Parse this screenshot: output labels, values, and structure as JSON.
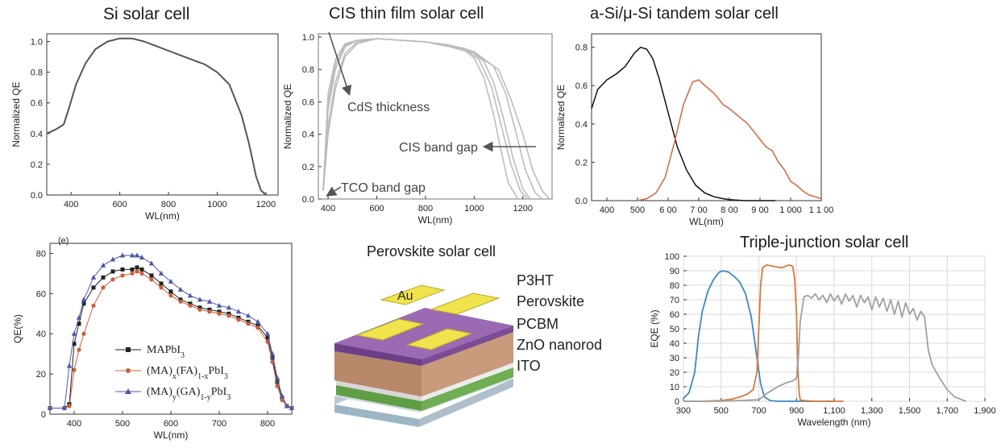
{
  "colors": {
    "si": "#555555",
    "cis": "#bcbcbc",
    "tandem_top": "#111111",
    "tandem_bottom": "#d2653f",
    "ma": "#222222",
    "mafa": "#c8603b",
    "maga": "#4a5aa6",
    "tj_top": "#3f86c4",
    "tj_mid": "#d77a3c",
    "tj_bottom": "#a0a0a0"
  },
  "panels": {
    "si": {
      "title": "Si solar cell"
    },
    "cis": {
      "title": "CIS thin film solar cell",
      "annotations": {
        "cds": "CdS thickness",
        "cis_gap": "CIS band gap",
        "tco": "TCO band gap"
      }
    },
    "tandem": {
      "title": "a-Si/μ-Si tandem solar cell"
    },
    "qe": {
      "panel_label": "(e)"
    },
    "perovskite": {
      "title": "Perovskite solar cell",
      "layers": [
        "P3HT",
        "Perovskite",
        "PCBM",
        "ZnO nanorod",
        "ITO"
      ],
      "electrode": "Au"
    },
    "triple": {
      "title": "Triple-junction solar cell"
    }
  },
  "chart_data": [
    {
      "id": "si",
      "type": "line",
      "title": "Si solar cell",
      "xlabel": "WL(nm)",
      "ylabel": "Normalized QE",
      "xlim": [
        300,
        1250
      ],
      "ylim": [
        0,
        1.05
      ],
      "xticks": [
        400,
        600,
        800,
        1000,
        1200
      ],
      "yticks": [
        0.0,
        0.2,
        0.4,
        0.6,
        0.8,
        1.0
      ],
      "ytick_labels": [
        "0.0",
        "0.2",
        "0.4",
        "0.6",
        "0.8",
        "1.0"
      ],
      "series": [
        {
          "x": [
            300,
            340,
            370,
            390,
            420,
            460,
            500,
            550,
            600,
            650,
            700,
            750,
            800,
            850,
            900,
            950,
            1000,
            1050,
            1100,
            1130,
            1160,
            1180,
            1200
          ],
          "y": [
            0.4,
            0.43,
            0.46,
            0.56,
            0.72,
            0.86,
            0.95,
            1.0,
            1.02,
            1.02,
            1.0,
            0.97,
            0.94,
            0.91,
            0.88,
            0.85,
            0.8,
            0.72,
            0.52,
            0.34,
            0.12,
            0.03,
            0.0
          ]
        }
      ]
    },
    {
      "id": "cis",
      "type": "line",
      "title": "CIS thin film solar cell",
      "xlabel": "WL(nm)",
      "ylabel": "Normalized QE",
      "xlim": [
        360,
        1320
      ],
      "ylim": [
        0,
        1.02
      ],
      "xticks": [
        400,
        600,
        800,
        1000,
        1200
      ],
      "yticks": [
        0.0,
        0.2,
        0.4,
        0.6,
        0.8,
        1.0
      ],
      "ytick_labels": [
        "0.0",
        "0.2",
        "0.4",
        "0.6",
        "0.8",
        "1.0"
      ],
      "series": [
        {
          "x": [
            380,
            400,
            430,
            470,
            520,
            600,
            700,
            800,
            900,
            960,
            1000,
            1040,
            1080,
            1110,
            1140,
            1180
          ],
          "y": [
            0.05,
            0.55,
            0.8,
            0.94,
            0.98,
            0.99,
            0.98,
            0.97,
            0.95,
            0.92,
            0.87,
            0.75,
            0.52,
            0.3,
            0.1,
            0.0
          ]
        },
        {
          "x": [
            380,
            400,
            430,
            470,
            520,
            600,
            700,
            800,
            900,
            980,
            1040,
            1080,
            1120,
            1160,
            1200,
            1230
          ],
          "y": [
            0.05,
            0.6,
            0.83,
            0.95,
            0.98,
            0.99,
            0.98,
            0.97,
            0.95,
            0.92,
            0.85,
            0.72,
            0.5,
            0.25,
            0.06,
            0.0
          ]
        },
        {
          "x": [
            380,
            400,
            430,
            470,
            520,
            600,
            700,
            800,
            900,
            1000,
            1080,
            1130,
            1170,
            1210,
            1250,
            1280
          ],
          "y": [
            0.05,
            0.45,
            0.72,
            0.9,
            0.97,
            0.99,
            0.98,
            0.97,
            0.95,
            0.91,
            0.82,
            0.65,
            0.42,
            0.18,
            0.04,
            0.0
          ]
        },
        {
          "x": [
            380,
            400,
            430,
            470,
            520,
            600,
            700,
            800,
            900,
            1000,
            1100,
            1150,
            1200,
            1240,
            1280,
            1310
          ],
          "y": [
            0.05,
            0.4,
            0.68,
            0.88,
            0.96,
            0.99,
            0.98,
            0.97,
            0.94,
            0.9,
            0.8,
            0.62,
            0.4,
            0.18,
            0.05,
            0.0
          ]
        },
        {
          "x": [
            380,
            400,
            430,
            470,
            520,
            600,
            700,
            800,
            900,
            960,
            1020,
            1070,
            1110,
            1150,
            1190,
            1220
          ],
          "y": [
            0.05,
            0.65,
            0.86,
            0.96,
            0.98,
            0.99,
            0.98,
            0.97,
            0.95,
            0.93,
            0.86,
            0.7,
            0.46,
            0.22,
            0.05,
            0.0
          ]
        }
      ]
    },
    {
      "id": "tandem",
      "type": "line",
      "title": "a-Si/μ-Si tandem solar cell",
      "xlabel": "WL(nm)",
      "ylabel": "Normalized QE",
      "xlim": [
        350,
        1100
      ],
      "ylim": [
        0,
        0.87
      ],
      "xticks": [
        400,
        500,
        600,
        700,
        800,
        900,
        1000,
        1100
      ],
      "xtick_labels": [
        "400",
        "500",
        "6 00",
        "7 00",
        "8 00",
        "9 00",
        "1 000",
        "1 1 00"
      ],
      "yticks": [
        0.0,
        0.2,
        0.4,
        0.6,
        0.8
      ],
      "ytick_labels": [
        "0.0",
        "0.2",
        "0.4",
        "0.6",
        "0.8"
      ],
      "series": [
        {
          "x": [
            350,
            370,
            400,
            430,
            460,
            490,
            510,
            530,
            550,
            570,
            600,
            630,
            660,
            690,
            720,
            750,
            780,
            800,
            850,
            900,
            950
          ],
          "y": [
            0.48,
            0.58,
            0.63,
            0.66,
            0.7,
            0.77,
            0.8,
            0.79,
            0.74,
            0.64,
            0.46,
            0.28,
            0.16,
            0.08,
            0.04,
            0.02,
            0.01,
            0.005,
            0.0,
            0.0,
            0.0
          ]
        },
        {
          "x": [
            500,
            530,
            560,
            590,
            620,
            650,
            680,
            700,
            720,
            750,
            780,
            800,
            830,
            860,
            880,
            900,
            920,
            940,
            960,
            980,
            1000,
            1020,
            1040,
            1060,
            1080,
            1100
          ],
          "y": [
            0.0,
            0.01,
            0.04,
            0.12,
            0.3,
            0.5,
            0.62,
            0.63,
            0.6,
            0.56,
            0.5,
            0.48,
            0.44,
            0.4,
            0.36,
            0.32,
            0.28,
            0.26,
            0.2,
            0.16,
            0.1,
            0.08,
            0.05,
            0.03,
            0.02,
            0.01
          ]
        }
      ]
    },
    {
      "id": "qe",
      "type": "line",
      "panel_label": "(e)",
      "xlabel": "WL(nm)",
      "ylabel": "QE(%)",
      "xlim": [
        350,
        850
      ],
      "ylim": [
        0,
        85
      ],
      "xticks": [
        400,
        500,
        600,
        700,
        800
      ],
      "yticks": [
        0,
        20,
        40,
        60,
        80
      ],
      "legend": [
        "MAPbI3",
        "(MA)x(FA)1-xPbI3",
        "(MA)y(GA)1-yPbI3"
      ],
      "x": [
        350,
        380,
        390,
        400,
        410,
        420,
        440,
        460,
        480,
        500,
        520,
        530,
        540,
        560,
        580,
        600,
        620,
        640,
        660,
        680,
        700,
        720,
        740,
        760,
        780,
        800,
        810,
        820,
        830,
        840,
        850
      ],
      "series": [
        {
          "name": "MAPbI3",
          "y": [
            3,
            3,
            5,
            35,
            45,
            55,
            63,
            68,
            71,
            72,
            72,
            73,
            72,
            69,
            65,
            61,
            57,
            55,
            53,
            52,
            51,
            50,
            48,
            46,
            44,
            38,
            28,
            16,
            8,
            4,
            3
          ]
        },
        {
          "name": "(MA)x(FA)1-xPbI3",
          "y": [
            3,
            3,
            4,
            22,
            32,
            40,
            54,
            63,
            67,
            69,
            70,
            71,
            70,
            67,
            63,
            59,
            56,
            54,
            52,
            51,
            50,
            49,
            47,
            45,
            43,
            36,
            26,
            14,
            7,
            4,
            3
          ]
        },
        {
          "name": "(MA)y(GA)1-yPbI3",
          "y": [
            3,
            3,
            24,
            40,
            48,
            57,
            68,
            74,
            77,
            79,
            79,
            79,
            78,
            75,
            70,
            66,
            62,
            59,
            57,
            56,
            54,
            53,
            51,
            49,
            46,
            40,
            30,
            18,
            9,
            4,
            3
          ]
        }
      ]
    },
    {
      "id": "triple",
      "type": "line",
      "title": "Triple-junction solar cell",
      "xlabel": "Wavelength (nm)",
      "ylabel": "EQE (%)",
      "xlim": [
        300,
        1900
      ],
      "ylim": [
        0,
        100
      ],
      "xticks": [
        300,
        500,
        700,
        900,
        1100,
        1300,
        1500,
        1700,
        1900
      ],
      "xtick_labels": [
        "300",
        "500",
        "700",
        "900",
        "1,100",
        "1,300",
        "1,500",
        "1,700",
        "1,900"
      ],
      "yticks": [
        0,
        10,
        20,
        30,
        40,
        50,
        60,
        70,
        80,
        90,
        100
      ],
      "series": [
        {
          "x": [
            300,
            330,
            360,
            380,
            400,
            430,
            460,
            490,
            510,
            540,
            570,
            600,
            630,
            660,
            690,
            710,
            730,
            760,
            800,
            900,
            1000,
            1100
          ],
          "y": [
            2,
            6,
            20,
            45,
            62,
            76,
            84,
            89,
            90,
            89,
            86,
            82,
            74,
            58,
            30,
            12,
            3,
            0.5,
            0,
            0,
            0,
            0
          ]
        },
        {
          "x": [
            300,
            400,
            500,
            560,
            600,
            640,
            670,
            690,
            700,
            710,
            720,
            740,
            780,
            820,
            860,
            880,
            890,
            900,
            905,
            910,
            915,
            920,
            940,
            1000,
            1100,
            1150
          ],
          "y": [
            0,
            0,
            0.5,
            1.5,
            3,
            5,
            8,
            20,
            50,
            80,
            92,
            94,
            93,
            92,
            94,
            93,
            85,
            60,
            35,
            15,
            5,
            1,
            0.5,
            0,
            0,
            0
          ]
        },
        {
          "x": [
            300,
            500,
            700,
            750,
            800,
            850,
            880,
            900,
            910,
            920,
            940,
            960,
            980,
            1000,
            1020,
            1040,
            1060,
            1080,
            1100,
            1120,
            1140,
            1160,
            1180,
            1200,
            1220,
            1240,
            1260,
            1280,
            1300,
            1320,
            1340,
            1360,
            1380,
            1400,
            1420,
            1440,
            1460,
            1480,
            1500,
            1520,
            1540,
            1560,
            1580,
            1600,
            1620,
            1660,
            1700,
            1740,
            1780,
            1800
          ],
          "y": [
            0,
            0,
            1,
            6,
            10,
            13,
            14,
            16,
            30,
            55,
            72,
            73,
            71,
            74,
            70,
            73,
            68,
            74,
            69,
            73,
            67,
            74,
            69,
            73,
            65,
            73,
            68,
            72,
            63,
            72,
            65,
            71,
            62,
            70,
            60,
            69,
            58,
            68,
            60,
            64,
            56,
            62,
            58,
            35,
            25,
            16,
            8,
            3,
            1,
            0
          ]
        }
      ]
    }
  ]
}
